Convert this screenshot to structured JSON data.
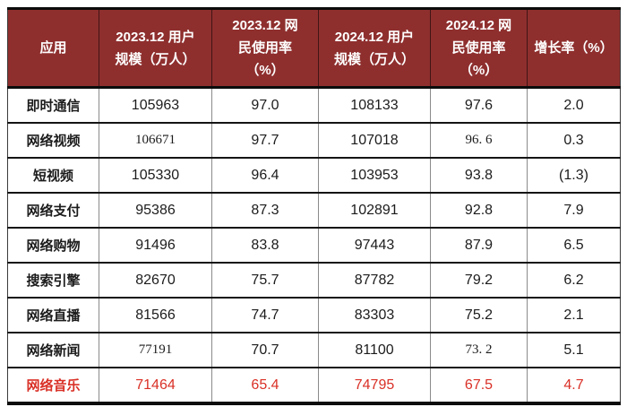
{
  "table": {
    "header_bg": "#8e2f2e",
    "header_text_color": "#ffffff",
    "body_text_color": "#1c1c1c",
    "highlight_text_color": "#d93026",
    "columns": [
      {
        "label": "应用"
      },
      {
        "label": "2023.12 用户\n规模（万人）"
      },
      {
        "label": "2023.12 网\n民使用率\n（%）"
      },
      {
        "label": "2024.12 用户\n规模（万人）"
      },
      {
        "label": "2024.12 网\n民使用率\n（%）"
      },
      {
        "label": "增长率（%）"
      }
    ],
    "rows": [
      {
        "cells": [
          "即时通信",
          "105963",
          "97.0",
          "108133",
          "97.6",
          "2.0"
        ],
        "highlight": false,
        "alt_cells": []
      },
      {
        "cells": [
          "网络视频",
          "106671",
          "97.7",
          "107018",
          "96. 6",
          "0.3"
        ],
        "highlight": false,
        "alt_cells": [
          1,
          4
        ]
      },
      {
        "cells": [
          "短视频",
          "105330",
          "96.4",
          "103953",
          "93.8",
          "(1.3)"
        ],
        "highlight": false,
        "alt_cells": []
      },
      {
        "cells": [
          "网络支付",
          "95386",
          "87.3",
          "102891",
          "92.8",
          "7.9"
        ],
        "highlight": false,
        "alt_cells": []
      },
      {
        "cells": [
          "网络购物",
          "91496",
          "83.8",
          "97443",
          "87.9",
          "6.5"
        ],
        "highlight": false,
        "alt_cells": []
      },
      {
        "cells": [
          "搜索引擎",
          "82670",
          "75.7",
          "87782",
          "79.2",
          "6.2"
        ],
        "highlight": false,
        "alt_cells": []
      },
      {
        "cells": [
          "网络直播",
          "81566",
          "74.7",
          "83303",
          "75.2",
          "2.1"
        ],
        "highlight": false,
        "alt_cells": []
      },
      {
        "cells": [
          "网络新闻",
          "77191",
          "70.7",
          "81100",
          "73. 2",
          "5.1"
        ],
        "highlight": false,
        "alt_cells": [
          1,
          4
        ]
      },
      {
        "cells": [
          "网络音乐",
          "71464",
          "65.4",
          "74795",
          "67.5",
          "4.7"
        ],
        "highlight": true,
        "alt_cells": []
      }
    ]
  },
  "chart_data": {
    "type": "table",
    "title": "",
    "columns": [
      "应用",
      "2023.12 用户规模（万人）",
      "2023.12 网民使用率（%）",
      "2024.12 用户规模（万人）",
      "2024.12 网民使用率（%）",
      "增长率（%）"
    ],
    "rows": [
      [
        "即时通信",
        105963,
        97.0,
        108133,
        97.6,
        2.0
      ],
      [
        "网络视频",
        106671,
        97.7,
        107018,
        96.6,
        0.3
      ],
      [
        "短视频",
        105330,
        96.4,
        103953,
        93.8,
        -1.3
      ],
      [
        "网络支付",
        95386,
        87.3,
        102891,
        92.8,
        7.9
      ],
      [
        "网络购物",
        91496,
        83.8,
        97443,
        87.9,
        6.5
      ],
      [
        "搜索引擎",
        82670,
        75.7,
        87782,
        79.2,
        6.2
      ],
      [
        "网络直播",
        81566,
        74.7,
        83303,
        75.2,
        2.1
      ],
      [
        "网络新闻",
        77191,
        70.7,
        81100,
        73.2,
        5.1
      ],
      [
        "网络音乐",
        71464,
        65.4,
        74795,
        67.5,
        4.7
      ]
    ],
    "notes": "最后一行（网络音乐）以红色突出显示；(1.3) 表示负增长"
  }
}
